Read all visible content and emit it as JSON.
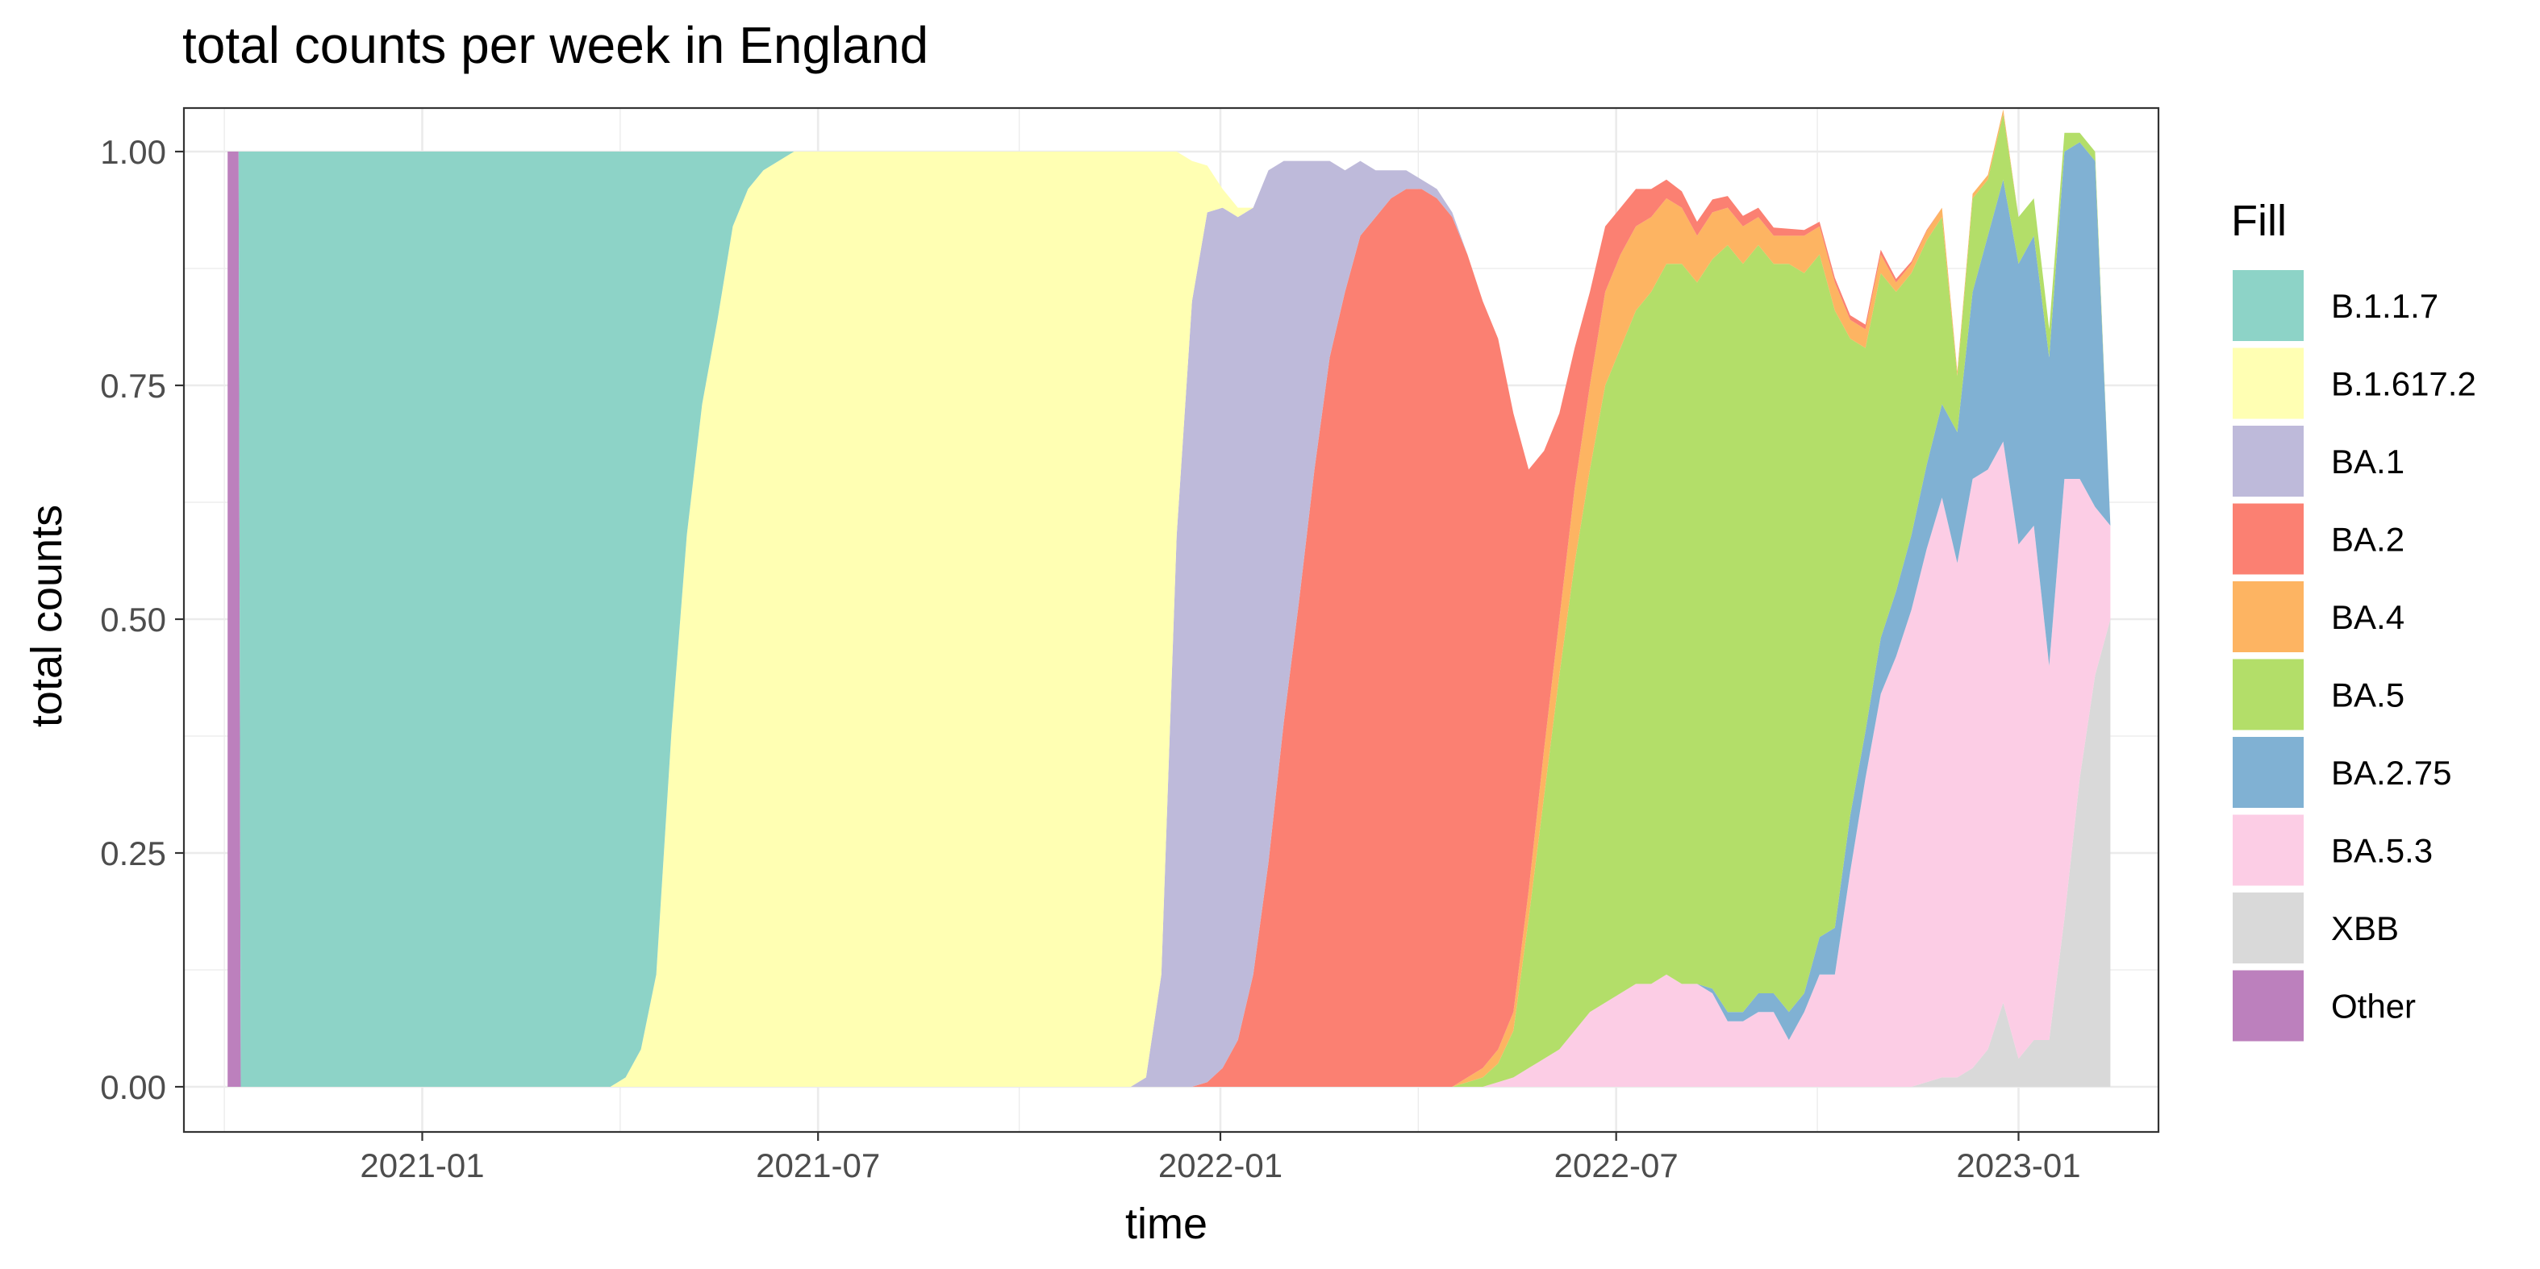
{
  "chart_data": {
    "type": "area",
    "stacked": true,
    "normalized": true,
    "title": "total counts per week in England",
    "xlabel": "time",
    "ylabel": "total counts",
    "ylim": [
      0,
      1
    ],
    "xlim": [
      "2020-09-14",
      "2023-03-06"
    ],
    "y_ticks": [
      "0.00",
      "0.25",
      "0.50",
      "0.75",
      "1.00"
    ],
    "x_ticks": [
      {
        "date": "2021-01-01",
        "label": "2021-01"
      },
      {
        "date": "2021-07-01",
        "label": "2021-07"
      },
      {
        "date": "2022-01-01",
        "label": "2022-01"
      },
      {
        "date": "2022-07-01",
        "label": "2022-07"
      },
      {
        "date": "2023-01-01",
        "label": "2023-01"
      }
    ],
    "grid": true,
    "legend": {
      "title": "Fill",
      "position": "right"
    },
    "series": [
      {
        "name": "B.1.1.7",
        "color": "#8DD3C7",
        "points": [
          [
            "2020-10-10",
            1
          ],
          [
            "2021-03-28",
            1
          ],
          [
            "2021-04-04",
            0.99
          ],
          [
            "2021-04-11",
            0.96
          ],
          [
            "2021-04-18",
            0.88
          ],
          [
            "2021-04-25",
            0.62
          ],
          [
            "2021-05-02",
            0.41
          ],
          [
            "2021-05-09",
            0.27
          ],
          [
            "2021-05-16",
            0.18
          ],
          [
            "2021-05-23",
            0.08
          ],
          [
            "2021-05-30",
            0.04
          ],
          [
            "2021-06-06",
            0.02
          ],
          [
            "2021-06-13",
            0.01
          ],
          [
            "2021-06-20",
            0
          ]
        ]
      },
      {
        "name": "B.1.617.2",
        "color": "#FFFFB3",
        "points": [
          [
            "2021-03-28",
            0
          ],
          [
            "2021-04-04",
            0.01
          ],
          [
            "2021-04-11",
            0.04
          ],
          [
            "2021-04-18",
            0.12
          ],
          [
            "2021-04-25",
            0.38
          ],
          [
            "2021-05-02",
            0.59
          ],
          [
            "2021-05-09",
            0.73
          ],
          [
            "2021-05-16",
            0.82
          ],
          [
            "2021-05-23",
            0.92
          ],
          [
            "2021-05-30",
            0.96
          ],
          [
            "2021-06-06",
            0.98
          ],
          [
            "2021-06-13",
            0.99
          ],
          [
            "2021-06-20",
            1
          ],
          [
            "2021-11-21",
            1
          ],
          [
            "2021-11-28",
            0.99
          ],
          [
            "2021-12-05",
            0.88
          ],
          [
            "2021-12-12",
            0.41
          ],
          [
            "2021-12-19",
            0.15
          ],
          [
            "2021-12-26",
            0.05
          ],
          [
            "2022-01-02",
            0.02
          ],
          [
            "2022-01-09",
            0.01
          ],
          [
            "2022-01-16",
            0
          ]
        ]
      },
      {
        "name": "BA.1",
        "color": "#BEBADA",
        "points": [
          [
            "2021-11-21",
            0
          ],
          [
            "2021-11-28",
            0.01
          ],
          [
            "2021-12-05",
            0.12
          ],
          [
            "2021-12-12",
            0.59
          ],
          [
            "2021-12-19",
            0.84
          ],
          [
            "2021-12-26",
            0.93
          ],
          [
            "2022-01-02",
            0.92
          ],
          [
            "2022-01-09",
            0.88
          ],
          [
            "2022-01-16",
            0.82
          ],
          [
            "2022-01-23",
            0.74
          ],
          [
            "2022-01-30",
            0.6
          ],
          [
            "2022-02-06",
            0.47
          ],
          [
            "2022-02-13",
            0.33
          ],
          [
            "2022-02-20",
            0.21
          ],
          [
            "2022-02-27",
            0.13
          ],
          [
            "2022-03-06",
            0.08
          ],
          [
            "2022-03-13",
            0.05
          ],
          [
            "2022-03-20",
            0.03
          ],
          [
            "2022-03-27",
            0.02
          ],
          [
            "2022-04-03",
            0.01
          ],
          [
            "2022-04-10",
            0.01
          ],
          [
            "2022-04-17",
            0.005
          ],
          [
            "2022-04-24",
            0
          ]
        ]
      },
      {
        "name": "BA.2",
        "color": "#FB8072",
        "points": [
          [
            "2021-12-19",
            0
          ],
          [
            "2021-12-26",
            0.005
          ],
          [
            "2022-01-02",
            0.02
          ],
          [
            "2022-01-09",
            0.05
          ],
          [
            "2022-01-16",
            0.12
          ],
          [
            "2022-01-23",
            0.24
          ],
          [
            "2022-01-30",
            0.39
          ],
          [
            "2022-02-06",
            0.52
          ],
          [
            "2022-02-13",
            0.66
          ],
          [
            "2022-02-20",
            0.78
          ],
          [
            "2022-02-27",
            0.85
          ],
          [
            "2022-03-06",
            0.91
          ],
          [
            "2022-03-13",
            0.93
          ],
          [
            "2022-03-20",
            0.95
          ],
          [
            "2022-03-27",
            0.96
          ],
          [
            "2022-04-03",
            0.96
          ],
          [
            "2022-04-10",
            0.95
          ],
          [
            "2022-04-17",
            0.93
          ],
          [
            "2022-04-24",
            0.88
          ],
          [
            "2022-05-01",
            0.82
          ],
          [
            "2022-05-08",
            0.76
          ],
          [
            "2022-05-15",
            0.64
          ],
          [
            "2022-05-22",
            0.45
          ],
          [
            "2022-05-29",
            0.32
          ],
          [
            "2022-06-05",
            0.22
          ],
          [
            "2022-06-12",
            0.15
          ],
          [
            "2022-06-19",
            0.1
          ],
          [
            "2022-06-26",
            0.07
          ],
          [
            "2022-07-03",
            0.05
          ],
          [
            "2022-07-10",
            0.04
          ],
          [
            "2022-07-17",
            0.03
          ],
          [
            "2022-07-24",
            0.02
          ],
          [
            "2022-08-07",
            0.015
          ],
          [
            "2022-09-04",
            0.01
          ],
          [
            "2022-10-02",
            0.005
          ],
          [
            "2022-10-30",
            0.005
          ],
          [
            "2022-11-27",
            0
          ]
        ]
      },
      {
        "name": "BA.4",
        "color": "#FDB462",
        "points": [
          [
            "2022-04-17",
            0
          ],
          [
            "2022-04-24",
            0.005
          ],
          [
            "2022-05-01",
            0.01
          ],
          [
            "2022-05-08",
            0.015
          ],
          [
            "2022-05-15",
            0.02
          ],
          [
            "2022-05-22",
            0.03
          ],
          [
            "2022-05-29",
            0.05
          ],
          [
            "2022-06-05",
            0.06
          ],
          [
            "2022-06-12",
            0.08
          ],
          [
            "2022-06-19",
            0.09
          ],
          [
            "2022-06-26",
            0.1
          ],
          [
            "2022-07-03",
            0.1
          ],
          [
            "2022-07-10",
            0.09
          ],
          [
            "2022-07-17",
            0.08
          ],
          [
            "2022-07-24",
            0.07
          ],
          [
            "2022-07-31",
            0.06
          ],
          [
            "2022-08-07",
            0.05
          ],
          [
            "2022-08-14",
            0.05
          ],
          [
            "2022-08-21",
            0.04
          ],
          [
            "2022-08-28",
            0.04
          ],
          [
            "2022-09-04",
            0.03
          ],
          [
            "2022-09-11",
            0.03
          ],
          [
            "2022-09-18",
            0.03
          ],
          [
            "2022-09-25",
            0.04
          ],
          [
            "2022-10-02",
            0.03
          ],
          [
            "2022-10-09",
            0.03
          ],
          [
            "2022-10-16",
            0.02
          ],
          [
            "2022-10-23",
            0.02
          ],
          [
            "2022-10-30",
            0.02
          ],
          [
            "2022-11-06",
            0.01
          ],
          [
            "2022-11-13",
            0.01
          ],
          [
            "2022-11-20",
            0.01
          ],
          [
            "2022-11-27",
            0.01
          ],
          [
            "2022-12-04",
            0.005
          ],
          [
            "2022-12-11",
            0.005
          ],
          [
            "2022-12-18",
            0.005
          ],
          [
            "2022-12-25",
            0.005
          ],
          [
            "2023-01-01",
            0
          ]
        ]
      },
      {
        "name": "BA.5",
        "color": "#B3DE69",
        "points": [
          [
            "2022-04-17",
            0
          ],
          [
            "2022-04-24",
            0.005
          ],
          [
            "2022-05-01",
            0.01
          ],
          [
            "2022-05-08",
            0.02
          ],
          [
            "2022-05-15",
            0.05
          ],
          [
            "2022-05-22",
            0.16
          ],
          [
            "2022-05-29",
            0.28
          ],
          [
            "2022-06-05",
            0.4
          ],
          [
            "2022-06-12",
            0.5
          ],
          [
            "2022-06-19",
            0.58
          ],
          [
            "2022-06-26",
            0.66
          ],
          [
            "2022-07-03",
            0.69
          ],
          [
            "2022-07-10",
            0.72
          ],
          [
            "2022-07-17",
            0.74
          ],
          [
            "2022-07-24",
            0.76
          ],
          [
            "2022-07-31",
            0.77
          ],
          [
            "2022-08-07",
            0.75
          ],
          [
            "2022-08-14",
            0.78
          ],
          [
            "2022-08-21",
            0.82
          ],
          [
            "2022-08-28",
            0.8
          ],
          [
            "2022-09-04",
            0.8
          ],
          [
            "2022-09-11",
            0.78
          ],
          [
            "2022-09-18",
            0.8
          ],
          [
            "2022-09-25",
            0.77
          ],
          [
            "2022-10-02",
            0.73
          ],
          [
            "2022-10-09",
            0.66
          ],
          [
            "2022-10-16",
            0.51
          ],
          [
            "2022-10-23",
            0.41
          ],
          [
            "2022-10-30",
            0.39
          ],
          [
            "2022-11-06",
            0.32
          ],
          [
            "2022-11-13",
            0.28
          ],
          [
            "2022-11-20",
            0.24
          ],
          [
            "2022-11-27",
            0.2
          ],
          [
            "2022-12-04",
            0.06
          ],
          [
            "2022-12-11",
            0.1
          ],
          [
            "2022-12-18",
            0.06
          ],
          [
            "2022-12-25",
            0.07
          ],
          [
            "2023-01-01",
            0.05
          ],
          [
            "2023-01-08",
            0.04
          ],
          [
            "2023-01-15",
            0.03
          ],
          [
            "2023-01-22",
            0.02
          ],
          [
            "2023-01-29",
            0.01
          ],
          [
            "2023-02-05",
            0.01
          ]
        ]
      },
      {
        "name": "BA.2.75",
        "color": "#80B1D3",
        "points": [
          [
            "2022-08-07",
            0
          ],
          [
            "2022-08-14",
            0.005
          ],
          [
            "2022-08-21",
            0.01
          ],
          [
            "2022-08-28",
            0.01
          ],
          [
            "2022-09-04",
            0.02
          ],
          [
            "2022-09-11",
            0.02
          ],
          [
            "2022-09-18",
            0.03
          ],
          [
            "2022-09-25",
            0.02
          ],
          [
            "2022-10-02",
            0.04
          ],
          [
            "2022-10-09",
            0.05
          ],
          [
            "2022-10-16",
            0.06
          ],
          [
            "2022-10-23",
            0.05
          ],
          [
            "2022-10-30",
            0.06
          ],
          [
            "2022-11-06",
            0.07
          ],
          [
            "2022-11-13",
            0.08
          ],
          [
            "2022-11-20",
            0.09
          ],
          [
            "2022-11-27",
            0.1
          ],
          [
            "2022-12-04",
            0.14
          ],
          [
            "2022-12-11",
            0.2
          ],
          [
            "2022-12-18",
            0.25
          ],
          [
            "2022-12-25",
            0.28
          ],
          [
            "2023-01-01",
            0.3
          ],
          [
            "2023-01-08",
            0.31
          ],
          [
            "2023-01-15",
            0.33
          ],
          [
            "2023-01-22",
            0.35
          ],
          [
            "2023-01-29",
            0.36
          ],
          [
            "2023-02-05",
            0.37
          ]
        ]
      },
      {
        "name": "BA.5.3",
        "color": "#FCCDE5",
        "points": [
          [
            "2022-05-01",
            0
          ],
          [
            "2022-05-08",
            0.005
          ],
          [
            "2022-05-15",
            0.01
          ],
          [
            "2022-05-22",
            0.02
          ],
          [
            "2022-05-29",
            0.03
          ],
          [
            "2022-06-05",
            0.04
          ],
          [
            "2022-06-12",
            0.06
          ],
          [
            "2022-06-19",
            0.08
          ],
          [
            "2022-06-26",
            0.09
          ],
          [
            "2022-07-03",
            0.1
          ],
          [
            "2022-07-10",
            0.11
          ],
          [
            "2022-07-17",
            0.11
          ],
          [
            "2022-07-24",
            0.12
          ],
          [
            "2022-07-31",
            0.11
          ],
          [
            "2022-08-07",
            0.11
          ],
          [
            "2022-08-14",
            0.1
          ],
          [
            "2022-08-21",
            0.07
          ],
          [
            "2022-08-28",
            0.07
          ],
          [
            "2022-09-04",
            0.08
          ],
          [
            "2022-09-11",
            0.08
          ],
          [
            "2022-09-18",
            0.05
          ],
          [
            "2022-09-25",
            0.08
          ],
          [
            "2022-10-02",
            0.12
          ],
          [
            "2022-10-09",
            0.12
          ],
          [
            "2022-10-16",
            0.23
          ],
          [
            "2022-10-23",
            0.33
          ],
          [
            "2022-10-30",
            0.42
          ],
          [
            "2022-11-06",
            0.46
          ],
          [
            "2022-11-13",
            0.51
          ],
          [
            "2022-11-20",
            0.57
          ],
          [
            "2022-11-27",
            0.62
          ],
          [
            "2022-12-04",
            0.55
          ],
          [
            "2022-12-11",
            0.63
          ],
          [
            "2022-12-18",
            0.62
          ],
          [
            "2022-12-25",
            0.6
          ],
          [
            "2023-01-01",
            0.55
          ],
          [
            "2023-01-08",
            0.55
          ],
          [
            "2023-01-15",
            0.4
          ],
          [
            "2023-01-22",
            0.47
          ],
          [
            "2023-01-29",
            0.32
          ],
          [
            "2023-02-05",
            0.18
          ],
          [
            "2023-02-12",
            0.1
          ]
        ]
      },
      {
        "name": "XBB",
        "color": "#D9D9D9",
        "points": [
          [
            "2022-11-13",
            0
          ],
          [
            "2022-11-20",
            0.005
          ],
          [
            "2022-11-27",
            0.01
          ],
          [
            "2022-12-04",
            0.01
          ],
          [
            "2022-12-11",
            0.02
          ],
          [
            "2022-12-18",
            0.04
          ],
          [
            "2022-12-25",
            0.09
          ],
          [
            "2023-01-01",
            0.03
          ],
          [
            "2023-01-08",
            0.05
          ],
          [
            "2023-01-15",
            0.05
          ],
          [
            "2023-01-22",
            0.18
          ],
          [
            "2023-01-29",
            0.33
          ],
          [
            "2023-02-05",
            0.44
          ],
          [
            "2023-02-12",
            0.5
          ]
        ]
      },
      {
        "name": "Other",
        "color": "#BC80BD",
        "points": [
          [
            "2020-10-04",
            1
          ],
          [
            "2020-10-09",
            1
          ],
          [
            "2020-10-10",
            0
          ]
        ]
      }
    ]
  }
}
